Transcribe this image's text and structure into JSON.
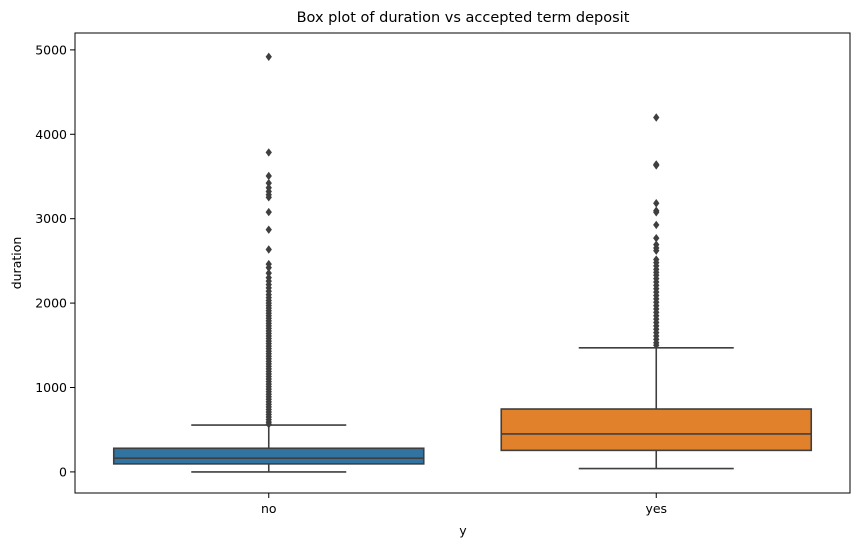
{
  "chart_data": {
    "type": "box",
    "title": "Box plot of duration vs accepted term deposit",
    "xlabel": "y",
    "ylabel": "duration",
    "categories": [
      "no",
      "yes"
    ],
    "ylim": [
      -250,
      5200
    ],
    "yticks": [
      0,
      1000,
      2000,
      3000,
      4000,
      5000
    ],
    "grid": false,
    "legend": "none",
    "colors": {
      "no": "#3274a1",
      "yes": "#e1812c",
      "line": "#3f3f3f",
      "outlier": "#3f3f3f"
    },
    "boxes": [
      {
        "category": "no",
        "whisker_low": 0,
        "q1": 95,
        "median": 163,
        "q3": 280,
        "whisker_high": 555,
        "outliers": [
          4918,
          3785,
          3506,
          3422,
          3366,
          3322,
          3284,
          3253,
          3078,
          2870,
          2635,
          2462,
          2420,
          2355,
          2301,
          2260,
          2219,
          2180,
          2140,
          2100,
          2065,
          2030,
          2000,
          1970,
          1940,
          1910,
          1880,
          1850,
          1820,
          1790,
          1760,
          1730,
          1700,
          1670,
          1640,
          1610,
          1580,
          1550,
          1520,
          1490,
          1460,
          1430,
          1400,
          1370,
          1340,
          1310,
          1280,
          1250,
          1220,
          1190,
          1160,
          1130,
          1100,
          1070,
          1040,
          1010,
          980,
          950,
          920,
          890,
          860,
          830,
          800,
          770,
          740,
          710,
          680,
          650,
          620,
          590,
          565
        ]
      },
      {
        "category": "yes",
        "whisker_low": 40,
        "q1": 255,
        "median": 450,
        "q3": 745,
        "whisker_high": 1470,
        "outliers": [
          4199,
          3643,
          3631,
          3183,
          3094,
          3076,
          2926,
          2769,
          2692,
          2653,
          2621,
          2516,
          2480,
          2441,
          2400,
          2364,
          2330,
          2290,
          2250,
          2210,
          2170,
          2130,
          2090,
          2050,
          2010,
          1970,
          1930,
          1890,
          1850,
          1810,
          1770,
          1730,
          1690,
          1650,
          1610,
          1570,
          1530,
          1500
        ]
      }
    ]
  }
}
